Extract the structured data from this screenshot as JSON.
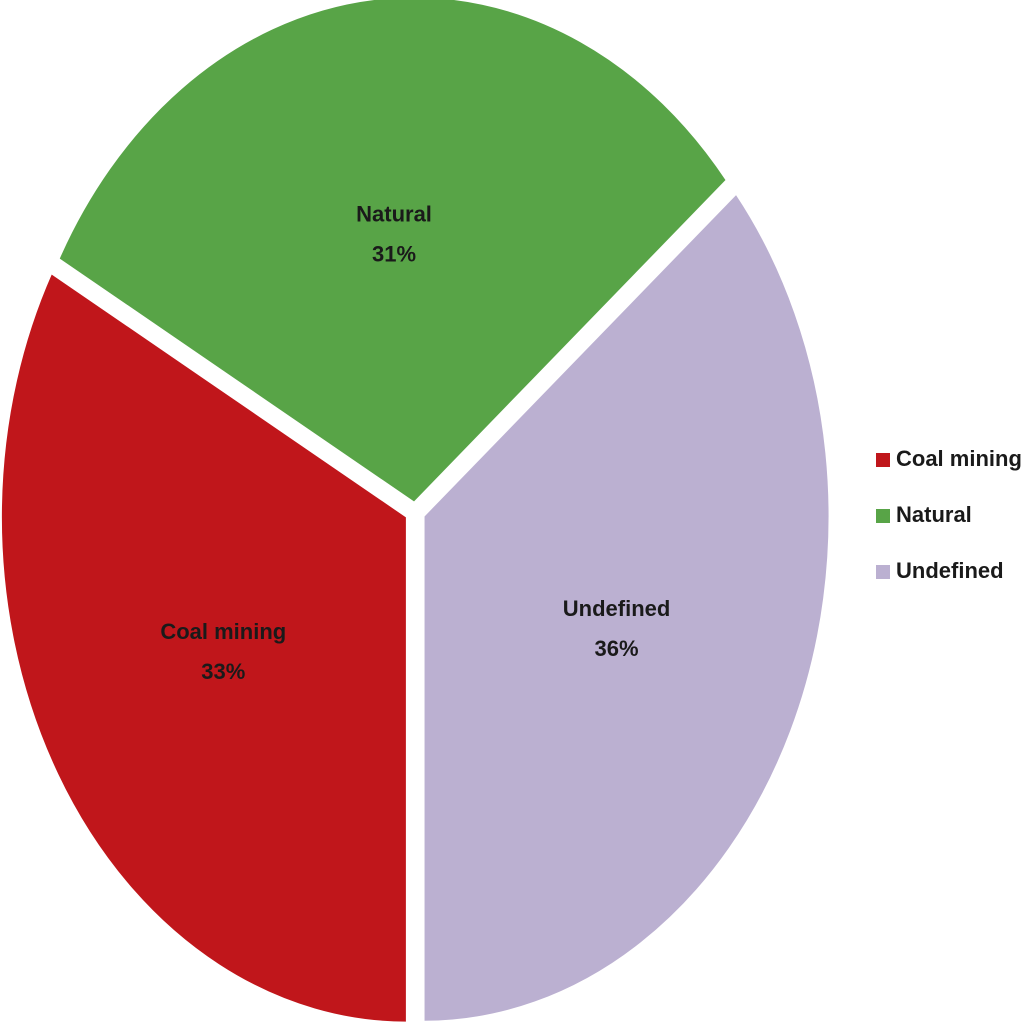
{
  "chart_data": {
    "type": "pie",
    "categories": [
      "Coal mining",
      "Natural",
      "Undefined"
    ],
    "values": [
      33,
      31,
      36
    ],
    "value_labels": [
      "33%",
      "31%",
      "36%"
    ],
    "colors": [
      "#c0161b",
      "#58a447",
      "#bbb0d1"
    ],
    "legend": "right"
  }
}
